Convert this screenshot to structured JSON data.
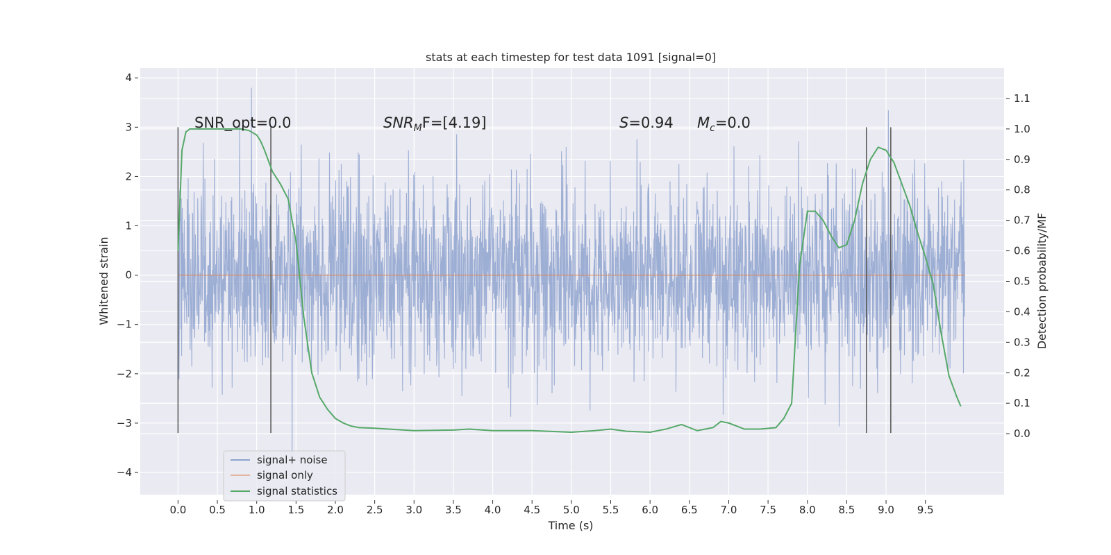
{
  "chart_data": {
    "type": "line",
    "title": "stats at each timestep for test data 1091 [signal=0]",
    "xlabel": "Time (s)",
    "ylabel": "Whitened strain",
    "y2label": "Detection probability/MF",
    "xlim": [
      -0.48,
      10.5
    ],
    "ylim": [
      -4.45,
      4.2
    ],
    "y2lim": [
      -0.2,
      1.2
    ],
    "xticks": [
      "0.0",
      "0.5",
      "1.0",
      "1.5",
      "2.0",
      "2.5",
      "3.0",
      "3.5",
      "4.0",
      "4.5",
      "5.0",
      "5.5",
      "6.0",
      "6.5",
      "7.0",
      "7.5",
      "8.0",
      "8.5",
      "9.0",
      "9.5"
    ],
    "yticks": [
      "4",
      "3",
      "2",
      "1",
      "0",
      "−1",
      "−2",
      "−3",
      "−4"
    ],
    "y2ticks": [
      "1.1",
      "1.0",
      "0.9",
      "0.8",
      "0.7",
      "0.6",
      "0.5",
      "0.4",
      "0.3",
      "0.2",
      "0.1",
      "0.0"
    ],
    "grid": true,
    "legend_placement": "lower-left",
    "annotations": {
      "snr_opt": "SNR_opt=0.0",
      "snr_mf_label": "SNR",
      "snr_mf_sub": "M",
      "snr_mf_value": "F=[4.19]",
      "s_label": "S",
      "s_value": "=0.94",
      "mc_label": "M",
      "mc_sub": "c",
      "mc_value": "=0.0"
    },
    "series": [
      {
        "name": "signal+ noise",
        "color": "#8fa3cf",
        "description_value_range": [
          -4.0,
          3.8
        ],
        "x_range": [
          0.0,
          10.0
        ]
      },
      {
        "name": "signal only",
        "color": "#dd8452",
        "x": [
          0.0,
          10.0
        ],
        "y": [
          0.0,
          0.0
        ]
      },
      {
        "name": "signal statistics",
        "color": "#55a868",
        "axis": "right",
        "x": [
          0.0,
          0.05,
          0.1,
          0.15,
          0.2,
          0.3,
          0.4,
          0.5,
          0.6,
          0.7,
          0.8,
          0.9,
          1.0,
          1.05,
          1.1,
          1.2,
          1.3,
          1.4,
          1.5,
          1.6,
          1.7,
          1.8,
          1.9,
          2.0,
          2.1,
          2.2,
          2.3,
          2.5,
          3.0,
          3.5,
          3.7,
          4.0,
          4.5,
          5.0,
          5.3,
          5.5,
          5.7,
          6.0,
          6.2,
          6.4,
          6.6,
          6.8,
          6.9,
          7.0,
          7.2,
          7.4,
          7.6,
          7.7,
          7.8,
          7.9,
          8.0,
          8.1,
          8.2,
          8.3,
          8.4,
          8.5,
          8.6,
          8.7,
          8.8,
          8.9,
          9.0,
          9.1,
          9.2,
          9.3,
          9.4,
          9.5,
          9.6,
          9.7,
          9.8,
          9.9,
          9.95
        ],
        "y": [
          0.6,
          0.93,
          0.99,
          1.0,
          1.0,
          1.0,
          1.0,
          1.0,
          1.0,
          1.0,
          1.0,
          0.995,
          0.98,
          0.96,
          0.93,
          0.86,
          0.82,
          0.77,
          0.63,
          0.38,
          0.2,
          0.12,
          0.08,
          0.05,
          0.035,
          0.025,
          0.02,
          0.018,
          0.01,
          0.012,
          0.015,
          0.01,
          0.01,
          0.005,
          0.01,
          0.015,
          0.008,
          0.005,
          0.015,
          0.03,
          0.01,
          0.02,
          0.04,
          0.035,
          0.015,
          0.015,
          0.02,
          0.05,
          0.1,
          0.55,
          0.73,
          0.73,
          0.7,
          0.65,
          0.61,
          0.62,
          0.7,
          0.82,
          0.9,
          0.94,
          0.93,
          0.89,
          0.82,
          0.75,
          0.66,
          0.58,
          0.49,
          0.33,
          0.19,
          0.12,
          0.09
        ]
      }
    ],
    "vertical_lines_x": [
      0.0,
      1.18,
      8.75,
      9.06
    ]
  }
}
